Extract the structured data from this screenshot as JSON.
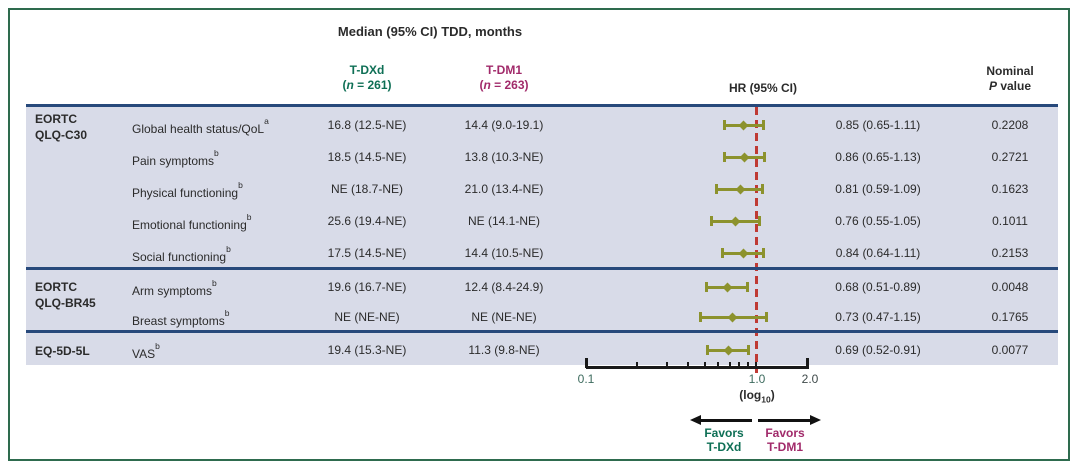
{
  "title": "Median (95% CI) TDD, months",
  "colors": {
    "frame_green": "#2e6b4e",
    "panel_bg": "#d8dbe8",
    "separator_navy": "#27497b",
    "marker_olive": "#8c922d",
    "reference_line_red": "#bf3a34",
    "tdxd_green": "#0e6f55",
    "tdm1_magenta": "#a12a6a",
    "text_dark": "#2b2b2b"
  },
  "header": {
    "tdxd": {
      "name": "T-DXd",
      "n_pre": "(",
      "n_var": "n",
      "n_post": " = 261)"
    },
    "tdm1": {
      "name": "T-DM1",
      "n_pre": "(",
      "n_var": "n",
      "n_post": " = 263)"
    },
    "hr": "HR (95% CI)",
    "p_line1": "Nominal",
    "p_italic": "P",
    "p_rest": " value"
  },
  "axis_labels": {
    "label_01": "0.1",
    "label_10": "1.0",
    "label_20": "2.0",
    "log_pre": "(log",
    "log_sub": "10",
    "log_post": ")"
  },
  "favors": {
    "left_line1": "Favors",
    "left_line2": "T-DXd",
    "right_line1": "Favors",
    "right_line2": "T-DM1"
  },
  "chart_data": {
    "type": "forest",
    "x_scale": "log10",
    "x_min": 0.1,
    "x_max": 2.0,
    "reference_line": 1.0,
    "x_ticks": [
      0.1,
      0.2,
      0.3,
      0.4,
      0.5,
      0.6,
      0.7,
      0.8,
      0.9,
      1.0,
      2.0
    ],
    "x_tick_labels": [
      "0.1",
      "1.0",
      "2.0"
    ],
    "groups": [
      {
        "name_lines": [
          "EORTC",
          "QLQ-C30"
        ],
        "rows": [
          {
            "endpoint": "Global health status/QoL",
            "sup": "a",
            "tdxd": "16.8 (12.5-NE)",
            "tdm1": "14.4 (9.0-19.1)",
            "hr": 0.85,
            "ci_low": 0.65,
            "ci_high": 1.11,
            "hr_text": "0.85 (0.65-1.11)",
            "p": "0.2208"
          },
          {
            "endpoint": "Pain symptoms",
            "sup": "b",
            "tdxd": "18.5 (14.5-NE)",
            "tdm1": "13.8 (10.3-NE)",
            "hr": 0.86,
            "ci_low": 0.65,
            "ci_high": 1.13,
            "hr_text": "0.86 (0.65-1.13)",
            "p": "0.2721"
          },
          {
            "endpoint": "Physical functioning",
            "sup": "b",
            "tdxd": "NE (18.7-NE)",
            "tdm1": "21.0 (13.4-NE)",
            "hr": 0.81,
            "ci_low": 0.59,
            "ci_high": 1.09,
            "hr_text": "0.81 (0.59-1.09)",
            "p": "0.1623"
          },
          {
            "endpoint": "Emotional functioning",
            "sup": "b",
            "tdxd": "25.6 (19.4-NE)",
            "tdm1": "NE (14.1-NE)",
            "hr": 0.76,
            "ci_low": 0.55,
            "ci_high": 1.05,
            "hr_text": "0.76 (0.55-1.05)",
            "p": "0.1011"
          },
          {
            "endpoint": "Social functioning",
            "sup": "b",
            "tdxd": "17.5 (14.5-NE)",
            "tdm1": "14.4 (10.5-NE)",
            "hr": 0.84,
            "ci_low": 0.64,
            "ci_high": 1.11,
            "hr_text": "0.84 (0.64-1.11)",
            "p": "0.2153"
          }
        ]
      },
      {
        "name_lines": [
          "EORTC",
          "QLQ-BR45"
        ],
        "rows": [
          {
            "endpoint": "Arm symptoms",
            "sup": "b",
            "tdxd": "19.6 (16.7-NE)",
            "tdm1": "12.4 (8.4-24.9)",
            "hr": 0.68,
            "ci_low": 0.51,
            "ci_high": 0.89,
            "hr_text": "0.68 (0.51-0.89)",
            "p": "0.0048"
          },
          {
            "endpoint": "Breast symptoms",
            "sup": "b",
            "tdxd": "NE (NE-NE)",
            "tdm1": "NE (NE-NE)",
            "hr": 0.73,
            "ci_low": 0.47,
            "ci_high": 1.15,
            "hr_text": "0.73 (0.47-1.15)",
            "p": "0.1765"
          }
        ]
      },
      {
        "name_lines": [
          "EQ-5D-5L"
        ],
        "rows": [
          {
            "endpoint": "VAS",
            "sup": "b",
            "tdxd": "19.4 (15.3-NE)",
            "tdm1": "11.3 (9.8-NE)",
            "hr": 0.69,
            "ci_low": 0.52,
            "ci_high": 0.91,
            "hr_text": "0.69 (0.52-0.91)",
            "p": "0.0077"
          }
        ]
      }
    ]
  }
}
